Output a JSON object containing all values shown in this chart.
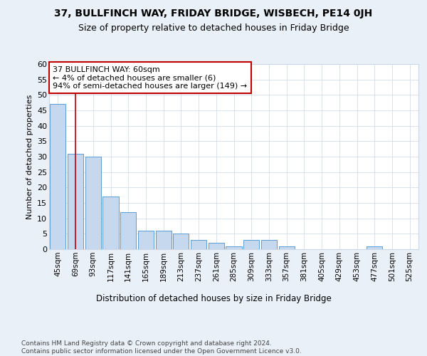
{
  "title1": "37, BULLFINCH WAY, FRIDAY BRIDGE, WISBECH, PE14 0JH",
  "title2": "Size of property relative to detached houses in Friday Bridge",
  "xlabel": "Distribution of detached houses by size in Friday Bridge",
  "ylabel": "Number of detached properties",
  "categories": [
    "45sqm",
    "69sqm",
    "93sqm",
    "117sqm",
    "141sqm",
    "165sqm",
    "189sqm",
    "213sqm",
    "237sqm",
    "261sqm",
    "285sqm",
    "309sqm",
    "333sqm",
    "357sqm",
    "381sqm",
    "405sqm",
    "429sqm",
    "453sqm",
    "477sqm",
    "501sqm",
    "525sqm"
  ],
  "values": [
    47,
    31,
    30,
    17,
    12,
    6,
    6,
    5,
    3,
    2,
    1,
    3,
    3,
    1,
    0,
    0,
    0,
    0,
    1,
    0,
    0
  ],
  "bar_color": "#c5d8ed",
  "bar_edge_color": "#5b9bd5",
  "red_line_x": 1,
  "annotation_text": "37 BULLFINCH WAY: 60sqm\n← 4% of detached houses are smaller (6)\n94% of semi-detached houses are larger (149) →",
  "annotation_box_color": "#ffffff",
  "annotation_box_edge": "#c00000",
  "ylim": [
    0,
    60
  ],
  "yticks": [
    0,
    5,
    10,
    15,
    20,
    25,
    30,
    35,
    40,
    45,
    50,
    55,
    60
  ],
  "footer": "Contains HM Land Registry data © Crown copyright and database right 2024.\nContains public sector information licensed under the Open Government Licence v3.0.",
  "bg_color": "#eaf0f8",
  "plot_bg_color": "#ffffff",
  "grid_color": "#c8d8e8"
}
